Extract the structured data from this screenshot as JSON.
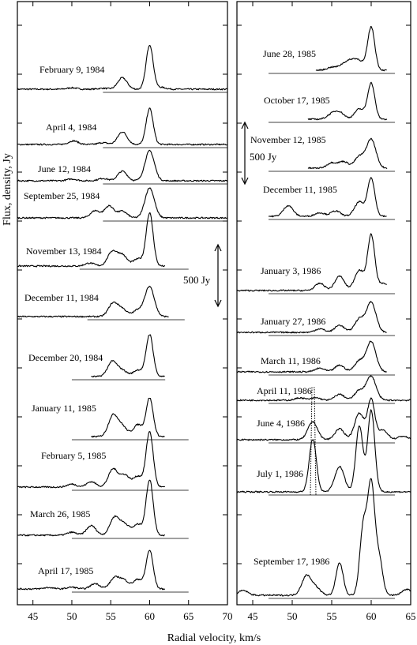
{
  "chart_data": [
    {
      "type": "line",
      "panel": "left",
      "xlim": [
        43,
        70
      ],
      "xticks": [
        "45",
        "50",
        "55",
        "60",
        "65",
        "70"
      ],
      "xlabel": "Radial velocity, km/s",
      "ylabel": "Flux, density, Jy",
      "scale_bar_label": "500 Jy",
      "series": [
        {
          "name": "February 9, 1984",
          "x_start": 43,
          "x_end": 70,
          "baseline_x": [
            54,
            70
          ],
          "peaks": [
            [
              50.0,
              12
            ],
            [
              54.0,
              8
            ],
            [
              56.5,
              95
            ],
            [
              60.0,
              370
            ],
            [
              61.5,
              15
            ]
          ]
        },
        {
          "name": "April 4, 1984",
          "x_start": 43,
          "x_end": 70,
          "baseline_x": [
            54,
            70
          ],
          "peaks": [
            [
              50.2,
              30
            ],
            [
              54.0,
              15
            ],
            [
              56.5,
              105
            ],
            [
              60.0,
              300
            ]
          ]
        },
        {
          "name": "June 12, 1984",
          "x_start": 43,
          "x_end": 70,
          "baseline_x": [
            54,
            70
          ],
          "peaks": [
            [
              50.0,
              15
            ],
            [
              54.0,
              20
            ],
            [
              56.5,
              80
            ],
            [
              60.0,
              250
            ]
          ]
        },
        {
          "name": "September 25, 1984",
          "x_start": 43,
          "x_end": 70,
          "baseline_x": [
            54,
            70
          ],
          "peaks": [
            [
              53.0,
              60
            ],
            [
              54.8,
              100
            ],
            [
              56.5,
              55
            ],
            [
              60.0,
              250
            ]
          ]
        },
        {
          "name": "November 13, 1984",
          "x_start": 43,
          "x_end": 62,
          "baseline_x": [
            51,
            65
          ],
          "peaks": [
            [
              52.3,
              25
            ],
            [
              55.2,
              120
            ],
            [
              56.5,
              90
            ],
            [
              58.5,
              60
            ],
            [
              60.0,
              440
            ]
          ]
        },
        {
          "name": "December 11, 1984",
          "x_start": 43,
          "x_end": 62.5,
          "baseline_x": [
            52,
            64.5
          ],
          "peaks": [
            [
              55.3,
              110
            ],
            [
              56.5,
              60
            ],
            [
              58.5,
              55
            ],
            [
              60.0,
              250
            ]
          ]
        },
        {
          "name": "December 20, 1984",
          "x_start": 52.5,
          "x_end": 62,
          "baseline_x": [
            50,
            62
          ],
          "peaks": [
            [
              55.2,
              125
            ],
            [
              56.5,
              50
            ],
            [
              58.5,
              55
            ],
            [
              60.0,
              350
            ]
          ]
        },
        {
          "name": "January 11, 1985",
          "x_start": 52.5,
          "x_end": 62,
          "baseline_x": [
            50,
            65
          ],
          "peaks": [
            [
              55.3,
              175
            ],
            [
              56.5,
              80
            ],
            [
              58.5,
              100
            ],
            [
              60.0,
              320
            ]
          ]
        },
        {
          "name": "February 5, 1985",
          "x_start": 43,
          "x_end": 62,
          "baseline_x": [
            50,
            65
          ],
          "peaks": [
            [
              50.0,
              25
            ],
            [
              52.5,
              45
            ],
            [
              55.3,
              150
            ],
            [
              56.8,
              100
            ],
            [
              58.5,
              90
            ],
            [
              60.0,
              460
            ]
          ]
        },
        {
          "name": "March 26, 1985",
          "x_start": 43,
          "x_end": 62,
          "baseline_x": [
            50,
            65
          ],
          "peaks": [
            [
              50.0,
              25
            ],
            [
              52.5,
              80
            ],
            [
              55.5,
              150
            ],
            [
              56.8,
              90
            ],
            [
              58.5,
              90
            ],
            [
              60.0,
              460
            ]
          ]
        },
        {
          "name": "April 17, 1985",
          "x_start": 43,
          "x_end": 62,
          "baseline_x": [
            50,
            65
          ],
          "peaks": [
            [
              47.0,
              12
            ],
            [
              50.0,
              15
            ],
            [
              53.0,
              45
            ],
            [
              55.5,
              90
            ],
            [
              56.7,
              70
            ],
            [
              58.5,
              80
            ],
            [
              60.0,
              320
            ]
          ]
        }
      ]
    },
    {
      "type": "line",
      "panel": "right",
      "xlim": [
        43,
        65
      ],
      "xticks": [
        "45",
        "50",
        "55",
        "60",
        "65"
      ],
      "xlabel": "Radial velocity, km/s",
      "scale_bar_label": "500 Jy",
      "series": [
        {
          "name": "June 28, 1985",
          "x_start": 53,
          "x_end": 62,
          "baseline_x": [
            47,
            63
          ],
          "peaks": [
            [
              55.0,
              25
            ],
            [
              56.5,
              45
            ],
            [
              57.5,
              65
            ],
            [
              58.5,
              70
            ],
            [
              60.0,
              360
            ]
          ]
        },
        {
          "name": "October 17, 1985",
          "x_start": 52,
          "x_end": 62,
          "baseline_x": [
            47,
            63
          ],
          "peaks": [
            [
              55.0,
              40
            ],
            [
              56.0,
              55
            ],
            [
              58.5,
              85
            ],
            [
              60.0,
              300
            ]
          ]
        },
        {
          "name": "November 12, 1985",
          "x_start": 52,
          "x_end": 62,
          "baseline_x": [
            47,
            63
          ],
          "peaks": [
            [
              55.0,
              45
            ],
            [
              56.5,
              55
            ],
            [
              58.5,
              95
            ],
            [
              60.0,
              240
            ]
          ]
        },
        {
          "name": "December 11, 1985",
          "x_start": 47,
          "x_end": 62,
          "baseline_x": [
            47,
            63
          ],
          "peaks": [
            [
              49.5,
              90
            ],
            [
              53.5,
              30
            ],
            [
              55.5,
              45
            ],
            [
              58.5,
              120
            ],
            [
              60.0,
              320
            ]
          ]
        },
        {
          "name": "January 3, 1986",
          "x_start": 43,
          "x_end": 62,
          "baseline_x": [
            47,
            63
          ],
          "peaks": [
            [
              53.5,
              60
            ],
            [
              56.0,
              120
            ],
            [
              58.5,
              170
            ],
            [
              60.0,
              460
            ],
            [
              61.5,
              60
            ]
          ]
        },
        {
          "name": "January 27, 1986",
          "x_start": 43,
          "x_end": 62,
          "baseline_x": [
            47,
            63
          ],
          "peaks": [
            [
              53.5,
              30
            ],
            [
              56.0,
              60
            ],
            [
              58.5,
              110
            ],
            [
              60.0,
              250
            ]
          ]
        },
        {
          "name": "March 11, 1986",
          "x_start": 43,
          "x_end": 62,
          "baseline_x": [
            47,
            63
          ],
          "peaks": [
            [
              53.5,
              30
            ],
            [
              56.0,
              55
            ],
            [
              58.5,
              90
            ],
            [
              60.0,
              250
            ]
          ]
        },
        {
          "name": "April 11, 1986",
          "x_start": 43,
          "x_end": 65,
          "baseline_x": [
            47,
            63
          ],
          "peaks": [
            [
              51.0,
              20
            ],
            [
              53.0,
              20
            ],
            [
              56.0,
              50
            ],
            [
              58.5,
              80
            ],
            [
              60.0,
              200
            ]
          ]
        },
        {
          "name": "June 4, 1986",
          "x_start": 43,
          "x_end": 65,
          "baseline_x": [
            47,
            63
          ],
          "peaks": [
            [
              52.6,
              150
            ],
            [
              56.0,
              90
            ],
            [
              58.5,
              220
            ],
            [
              60.0,
              330
            ],
            [
              61.5,
              80
            ],
            [
              64.0,
              30
            ]
          ]
        },
        {
          "name": "July 1, 1986",
          "x_start": 43,
          "x_end": 65,
          "baseline_x": [
            47,
            63
          ],
          "peaks": [
            [
              52.6,
              440
            ],
            [
              56.0,
              210
            ],
            [
              58.5,
              550
            ],
            [
              60.0,
              680
            ]
          ]
        },
        {
          "name": "September 17, 1986",
          "x_start": 43,
          "x_end": 65,
          "baseline_x": [
            47,
            63
          ],
          "peaks": [
            [
              43.8,
              40
            ],
            [
              51.8,
              160
            ],
            [
              53.0,
              60
            ],
            [
              56.0,
              270
            ],
            [
              59.0,
              560
            ],
            [
              60.0,
              900
            ],
            [
              61.0,
              300
            ],
            [
              64.5,
              50
            ]
          ]
        }
      ]
    }
  ]
}
